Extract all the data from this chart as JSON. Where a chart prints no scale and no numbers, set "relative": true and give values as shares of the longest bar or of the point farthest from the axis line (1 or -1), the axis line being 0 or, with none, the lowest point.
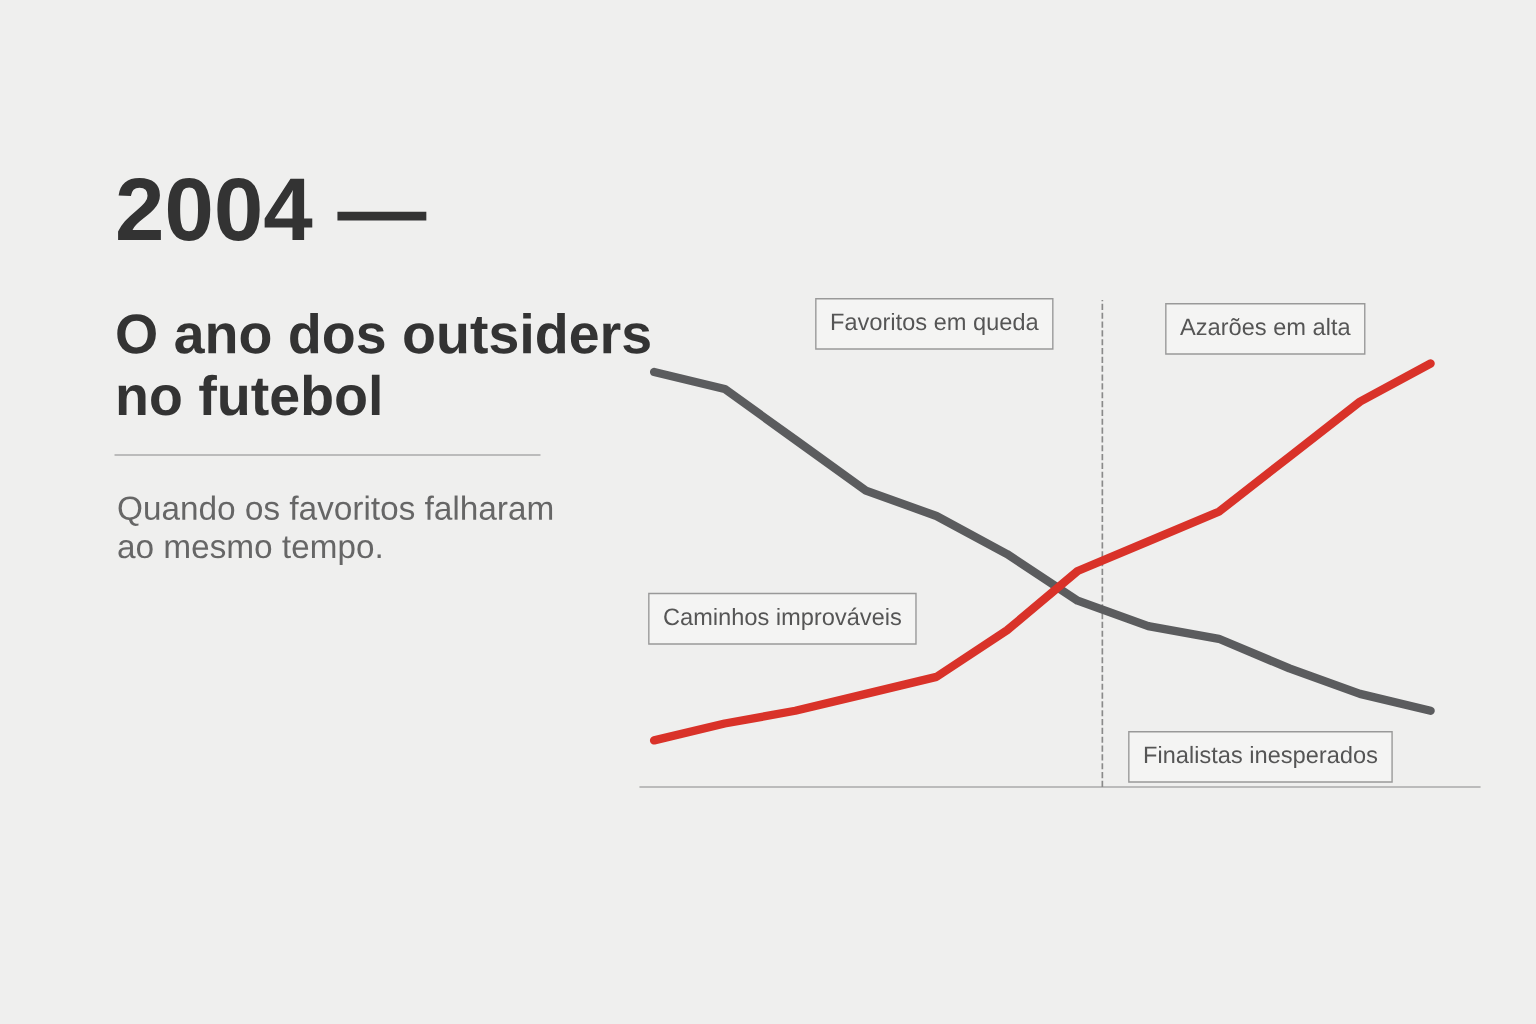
{
  "chart_data": {
    "type": "line",
    "relative": true,
    "title": "2004 —",
    "subtitle": "O ano dos outsiders\nno futebol",
    "categories": [
      null,
      null,
      null,
      null,
      null,
      null,
      null,
      null,
      null,
      null,
      null,
      null
    ],
    "series": [
      {
        "color": "#5b5c5e",
        "values": [
          0.98,
          0.94,
          0.82,
          0.7,
          0.64,
          0.55,
          0.44,
          0.38,
          0.35,
          0.28,
          0.22,
          0.18
        ]
      },
      {
        "color": "#d93229",
        "values": [
          0.11,
          0.15,
          0.18,
          0.22,
          0.26,
          0.37,
          0.51,
          0.58,
          0.65,
          0.78,
          0.91,
          1
        ]
      }
    ],
    "annotations": [
      "Quando os favoritos falharam\nao mesmo tempo.",
      "Favoritos em queda",
      "Azarões em alta",
      "Caminhos improváveis",
      "Finalistas inesperados"
    ],
    "line_style": "solid",
    "marker": "none",
    "grid": false
  }
}
